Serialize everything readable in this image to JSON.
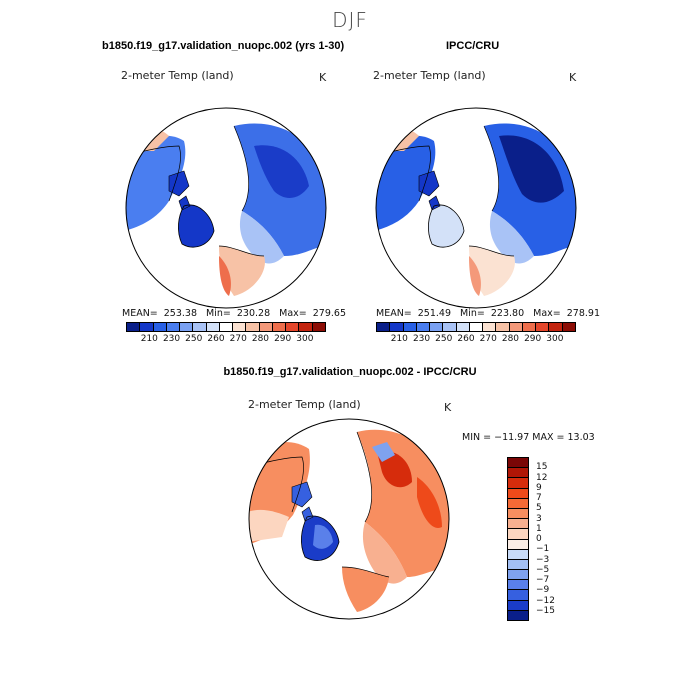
{
  "figure": {
    "title": "DJF"
  },
  "chart_data": [
    {
      "type": "heatmap",
      "projection": "north-polar-stereographic",
      "title": "b1850.f19_g17.validation_nuopc.002 (yrs 1-30)",
      "variable": "2-meter Temp (land)",
      "units": "K",
      "mean_label": "MEAN=",
      "mean": "253.38",
      "min_label": "Min=",
      "min": "230.28",
      "max_label": "Max=",
      "max": "279.65",
      "colorbar_ticks": [
        "210",
        "230",
        "250",
        "260",
        "270",
        "280",
        "290",
        "300"
      ],
      "colorbar_colors": [
        "#0a1f8a",
        "#1437c8",
        "#2860e6",
        "#4a7ef0",
        "#7aa1f2",
        "#a9c3f6",
        "#d3e1f8",
        "#ffffff",
        "#fbe2d2",
        "#f7c2a6",
        "#f4997a",
        "#ee6e4c",
        "#e4462b",
        "#c3240f",
        "#8c0d05"
      ]
    },
    {
      "type": "heatmap",
      "projection": "north-polar-stereographic",
      "title": "IPCC/CRU",
      "variable": "2-meter Temp (land)",
      "units": "K",
      "mean_label": "MEAN=",
      "mean": "251.49",
      "min_label": "Min=",
      "min": "223.80",
      "max_label": "Max=",
      "max": "278.91",
      "colorbar_ticks": [
        "210",
        "230",
        "250",
        "260",
        "270",
        "280",
        "290",
        "300"
      ],
      "colorbar_colors": [
        "#0a1f8a",
        "#1437c8",
        "#2860e6",
        "#4a7ef0",
        "#7aa1f2",
        "#a9c3f6",
        "#d3e1f8",
        "#ffffff",
        "#fbe2d2",
        "#f7c2a6",
        "#f4997a",
        "#ee6e4c",
        "#e4462b",
        "#c3240f",
        "#8c0d05"
      ]
    },
    {
      "type": "heatmap",
      "projection": "north-polar-stereographic",
      "title": "b1850.f19_g17.validation_nuopc.002 - IPCC/CRU",
      "variable": "2-meter Temp (land)",
      "units": "K",
      "min_max_text": "MIN = −11.97 MAX =  13.03",
      "colorbar_ticks": [
        "15",
        "12",
        "9",
        "7",
        "5",
        "3",
        "1",
        "0",
        "−1",
        "−3",
        "−5",
        "−7",
        "−9",
        "−12",
        "−15"
      ],
      "colorbar_colors": [
        "#7a0606",
        "#b01606",
        "#d62c0c",
        "#ee4a1a",
        "#f56a36",
        "#f78e60",
        "#f8b090",
        "#fcd6c0",
        "#fbeee6",
        "#c8dbf8",
        "#a3c0f4",
        "#7fa2ef",
        "#5a80ea",
        "#3660e0",
        "#1a3cc8",
        "#0a1f8a"
      ]
    }
  ]
}
